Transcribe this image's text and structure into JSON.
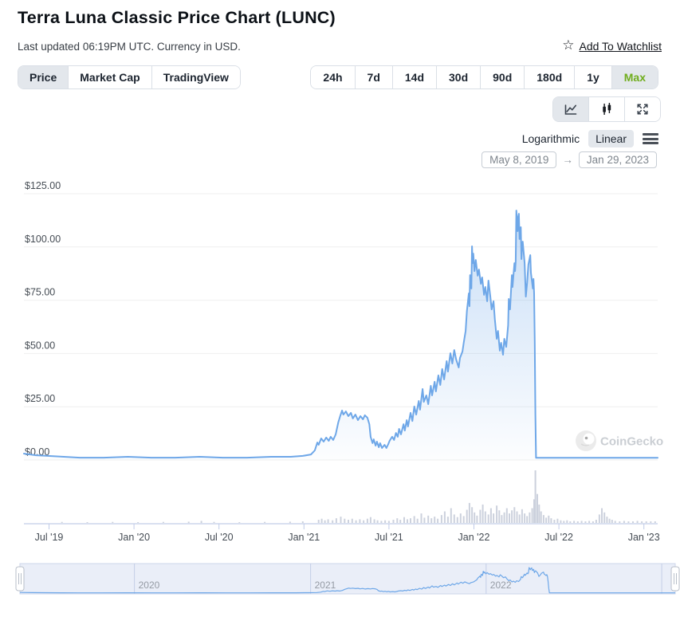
{
  "header": {
    "title": "Terra Luna Classic Price Chart (LUNC)",
    "subtitle": "Last updated 06:19PM UTC. Currency in USD.",
    "watchlist_label": "Add To Watchlist"
  },
  "tabs": [
    {
      "label": "Price",
      "active": true
    },
    {
      "label": "Market Cap",
      "active": false
    },
    {
      "label": "TradingView",
      "active": false
    }
  ],
  "ranges": [
    {
      "label": "24h",
      "active": false
    },
    {
      "label": "7d",
      "active": false
    },
    {
      "label": "14d",
      "active": false
    },
    {
      "label": "30d",
      "active": false
    },
    {
      "label": "90d",
      "active": false
    },
    {
      "label": "180d",
      "active": false
    },
    {
      "label": "1y",
      "active": false
    },
    {
      "label": "Max",
      "active": true
    }
  ],
  "chart_type_buttons": [
    {
      "icon": "line-chart-icon",
      "active": true
    },
    {
      "icon": "candlestick-icon",
      "active": false
    },
    {
      "icon": "fullscreen-icon",
      "active": false
    }
  ],
  "scale_toggle": {
    "log_label": "Logarithmic",
    "linear_label": "Linear",
    "active": "Linear"
  },
  "date_range": {
    "from": "May 8, 2019",
    "arrow": "→",
    "to": "Jan 29, 2023"
  },
  "watermark": "CoinGecko",
  "ui_colors": {
    "active_range_green": "#70ad1d",
    "active_segment_bg": "#e3e7ec"
  },
  "chart_data": {
    "type": "area",
    "currency": "USD",
    "y_ticks": [
      "$0.00",
      "$25.00",
      "$50.00",
      "$75.00",
      "$100.00",
      "$125.00"
    ],
    "y_tick_values": [
      0,
      25,
      50,
      75,
      100,
      125
    ],
    "ylim": [
      0,
      131
    ],
    "x_ticks": [
      "Jul '19",
      "Jan '20",
      "Jul '20",
      "Jan '21",
      "Jul '21",
      "Jan '22",
      "Jul '22",
      "Jan '23"
    ],
    "x_range": [
      "May 8, 2019",
      "Jan 29, 2023"
    ],
    "navigator_years": [
      "2020",
      "2021",
      "2022"
    ],
    "grid": true,
    "legend": false,
    "colors": {
      "line": "#6ea7e8",
      "fill_top": "rgba(110,167,232,0.38)",
      "fill_bottom": "rgba(110,167,232,0.02)",
      "volume": "#ccd1dd",
      "axis": "#b3c0e2",
      "tick": "#c0cbe8",
      "grid": "#efefef",
      "nav_bg": "rgba(125,148,210,0.16)",
      "nav_border": "#ccd5ea",
      "nav_divider": "#c4cee7",
      "nav_line": "#6ea7e8"
    },
    "price_series": [
      [
        0,
        3.0
      ],
      [
        0.019,
        2.2
      ],
      [
        0.038,
        1.9
      ],
      [
        0.063,
        1.5
      ],
      [
        0.088,
        1.1
      ],
      [
        0.126,
        1.1
      ],
      [
        0.164,
        1.5
      ],
      [
        0.201,
        1.1
      ],
      [
        0.239,
        1.1
      ],
      [
        0.277,
        1.5
      ],
      [
        0.314,
        1.1
      ],
      [
        0.352,
        1.1
      ],
      [
        0.39,
        1.5
      ],
      [
        0.421,
        1.5
      ],
      [
        0.44,
        1.9
      ],
      [
        0.453,
        2.6
      ],
      [
        0.459,
        4.5
      ],
      [
        0.463,
        8.2
      ],
      [
        0.465,
        7.1
      ],
      [
        0.469,
        10.1
      ],
      [
        0.473,
        8.6
      ],
      [
        0.477,
        10.5
      ],
      [
        0.481,
        9.0
      ],
      [
        0.484,
        10.9
      ],
      [
        0.488,
        9.4
      ],
      [
        0.492,
        12.0
      ],
      [
        0.496,
        17.6
      ],
      [
        0.499,
        20.6
      ],
      [
        0.502,
        23.2
      ],
      [
        0.504,
        21.3
      ],
      [
        0.508,
        22.8
      ],
      [
        0.512,
        20.6
      ],
      [
        0.516,
        22.1
      ],
      [
        0.519,
        19.5
      ],
      [
        0.523,
        21.3
      ],
      [
        0.527,
        18.7
      ],
      [
        0.531,
        20.6
      ],
      [
        0.535,
        19.1
      ],
      [
        0.538,
        21.0
      ],
      [
        0.542,
        19.8
      ],
      [
        0.545,
        16.8
      ],
      [
        0.547,
        10.9
      ],
      [
        0.55,
        7.9
      ],
      [
        0.552,
        9.7
      ],
      [
        0.555,
        6.7
      ],
      [
        0.557,
        8.6
      ],
      [
        0.56,
        6.0
      ],
      [
        0.562,
        7.9
      ],
      [
        0.565,
        5.6
      ],
      [
        0.569,
        7.1
      ],
      [
        0.572,
        5.6
      ],
      [
        0.575,
        7.5
      ],
      [
        0.577,
        9.0
      ],
      [
        0.581,
        10.9
      ],
      [
        0.584,
        9.4
      ],
      [
        0.587,
        12.7
      ],
      [
        0.59,
        10.9
      ],
      [
        0.592,
        14.6
      ],
      [
        0.595,
        12.0
      ],
      [
        0.599,
        16.8
      ],
      [
        0.601,
        13.8
      ],
      [
        0.604,
        18.7
      ],
      [
        0.606,
        15.7
      ],
      [
        0.61,
        22.1
      ],
      [
        0.613,
        18.3
      ],
      [
        0.616,
        25.1
      ],
      [
        0.619,
        21.3
      ],
      [
        0.623,
        27.7
      ],
      [
        0.625,
        23.6
      ],
      [
        0.629,
        33.3
      ],
      [
        0.631,
        27.3
      ],
      [
        0.635,
        30.3
      ],
      [
        0.638,
        26.2
      ],
      [
        0.642,
        34.8
      ],
      [
        0.644,
        30.3
      ],
      [
        0.648,
        36.7
      ],
      [
        0.65,
        32.2
      ],
      [
        0.654,
        39.7
      ],
      [
        0.657,
        35.2
      ],
      [
        0.66,
        42.7
      ],
      [
        0.663,
        37.8
      ],
      [
        0.667,
        46.4
      ],
      [
        0.669,
        41.5
      ],
      [
        0.673,
        50.1
      ],
      [
        0.676,
        45.3
      ],
      [
        0.679,
        51.6
      ],
      [
        0.682,
        47.2
      ],
      [
        0.686,
        43.4
      ],
      [
        0.688,
        47.9
      ],
      [
        0.692,
        50.9
      ],
      [
        0.694,
        55.0
      ],
      [
        0.697,
        60.6
      ],
      [
        0.699,
        70.0
      ],
      [
        0.702,
        78.2
      ],
      [
        0.703,
        72.2
      ],
      [
        0.704,
        86.8
      ],
      [
        0.706,
        80.5
      ],
      [
        0.707,
        100.3
      ],
      [
        0.708,
        92.4
      ],
      [
        0.709,
        96.9
      ],
      [
        0.711,
        88.7
      ],
      [
        0.713,
        93.9
      ],
      [
        0.716,
        86.5
      ],
      [
        0.718,
        89.4
      ],
      [
        0.721,
        82.7
      ],
      [
        0.723,
        85.7
      ],
      [
        0.726,
        77.5
      ],
      [
        0.728,
        81.2
      ],
      [
        0.731,
        74.5
      ],
      [
        0.733,
        84.2
      ],
      [
        0.736,
        76.7
      ],
      [
        0.738,
        70.7
      ],
      [
        0.741,
        74.5
      ],
      [
        0.743,
        66.2
      ],
      [
        0.746,
        56.9
      ],
      [
        0.748,
        60.6
      ],
      [
        0.751,
        51.3
      ],
      [
        0.753,
        55.0
      ],
      [
        0.756,
        49.4
      ],
      [
        0.758,
        56.9
      ],
      [
        0.761,
        53.1
      ],
      [
        0.764,
        63.2
      ],
      [
        0.765,
        75.6
      ],
      [
        0.767,
        70.7
      ],
      [
        0.77,
        86.8
      ],
      [
        0.771,
        81.2
      ],
      [
        0.774,
        92.4
      ],
      [
        0.775,
        88.7
      ],
      [
        0.776,
        93.2
      ],
      [
        0.777,
        117.1
      ],
      [
        0.779,
        107.4
      ],
      [
        0.78,
        114.1
      ],
      [
        0.781,
        115.6
      ],
      [
        0.782,
        103.7
      ],
      [
        0.784,
        109.3
      ],
      [
        0.785,
        94.3
      ],
      [
        0.786,
        99.9
      ],
      [
        0.787,
        102.5
      ],
      [
        0.79,
        92.4
      ],
      [
        0.792,
        76.7
      ],
      [
        0.794,
        83.1
      ],
      [
        0.796,
        91.7
      ],
      [
        0.799,
        96.2
      ],
      [
        0.8,
        87.9
      ],
      [
        0.803,
        80.5
      ],
      [
        0.804,
        85.0
      ],
      [
        0.805,
        78.2
      ],
      [
        0.806,
        55.0
      ],
      [
        0.807,
        21.3
      ],
      [
        0.808,
        1.0
      ],
      [
        0.85,
        1.0
      ],
      [
        0.9,
        1.0
      ],
      [
        0.95,
        1.0
      ],
      [
        1.0,
        1.0
      ]
    ],
    "volume_series": [
      [
        0.06,
        0.02
      ],
      [
        0.1,
        0.015
      ],
      [
        0.14,
        0.02
      ],
      [
        0.18,
        0.015
      ],
      [
        0.22,
        0.02
      ],
      [
        0.26,
        0.025
      ],
      [
        0.28,
        0.04
      ],
      [
        0.3,
        0.02
      ],
      [
        0.34,
        0.015
      ],
      [
        0.38,
        0.02
      ],
      [
        0.42,
        0.025
      ],
      [
        0.44,
        0.03
      ],
      [
        0.465,
        0.06
      ],
      [
        0.47,
        0.08
      ],
      [
        0.475,
        0.05
      ],
      [
        0.48,
        0.07
      ],
      [
        0.487,
        0.05
      ],
      [
        0.493,
        0.09
      ],
      [
        0.5,
        0.12
      ],
      [
        0.506,
        0.08
      ],
      [
        0.512,
        0.06
      ],
      [
        0.518,
        0.08
      ],
      [
        0.524,
        0.05
      ],
      [
        0.53,
        0.07
      ],
      [
        0.536,
        0.05
      ],
      [
        0.542,
        0.08
      ],
      [
        0.547,
        0.11
      ],
      [
        0.553,
        0.07
      ],
      [
        0.558,
        0.05
      ],
      [
        0.564,
        0.04
      ],
      [
        0.57,
        0.05
      ],
      [
        0.576,
        0.04
      ],
      [
        0.583,
        0.06
      ],
      [
        0.589,
        0.09
      ],
      [
        0.594,
        0.06
      ],
      [
        0.6,
        0.11
      ],
      [
        0.605,
        0.07
      ],
      [
        0.61,
        0.09
      ],
      [
        0.616,
        0.13
      ],
      [
        0.621,
        0.08
      ],
      [
        0.627,
        0.18
      ],
      [
        0.632,
        0.1
      ],
      [
        0.638,
        0.14
      ],
      [
        0.643,
        0.09
      ],
      [
        0.648,
        0.12
      ],
      [
        0.653,
        0.08
      ],
      [
        0.659,
        0.15
      ],
      [
        0.664,
        0.22
      ],
      [
        0.669,
        0.12
      ],
      [
        0.674,
        0.28
      ],
      [
        0.679,
        0.16
      ],
      [
        0.684,
        0.11
      ],
      [
        0.689,
        0.18
      ],
      [
        0.694,
        0.13
      ],
      [
        0.699,
        0.25
      ],
      [
        0.703,
        0.38
      ],
      [
        0.707,
        0.3
      ],
      [
        0.711,
        0.2
      ],
      [
        0.715,
        0.14
      ],
      [
        0.72,
        0.25
      ],
      [
        0.724,
        0.35
      ],
      [
        0.728,
        0.22
      ],
      [
        0.733,
        0.16
      ],
      [
        0.737,
        0.28
      ],
      [
        0.741,
        0.18
      ],
      [
        0.746,
        0.33
      ],
      [
        0.75,
        0.24
      ],
      [
        0.754,
        0.15
      ],
      [
        0.758,
        0.2
      ],
      [
        0.762,
        0.28
      ],
      [
        0.766,
        0.18
      ],
      [
        0.77,
        0.24
      ],
      [
        0.774,
        0.3
      ],
      [
        0.778,
        0.22
      ],
      [
        0.782,
        0.16
      ],
      [
        0.786,
        0.26
      ],
      [
        0.79,
        0.18
      ],
      [
        0.794,
        0.13
      ],
      [
        0.798,
        0.2
      ],
      [
        0.802,
        0.28
      ],
      [
        0.805,
        0.45
      ],
      [
        0.807,
        1.0
      ],
      [
        0.81,
        0.55
      ],
      [
        0.813,
        0.35
      ],
      [
        0.816,
        0.22
      ],
      [
        0.82,
        0.15
      ],
      [
        0.824,
        0.1
      ],
      [
        0.828,
        0.14
      ],
      [
        0.832,
        0.09
      ],
      [
        0.837,
        0.06
      ],
      [
        0.842,
        0.08
      ],
      [
        0.847,
        0.05
      ],
      [
        0.852,
        0.04
      ],
      [
        0.857,
        0.05
      ],
      [
        0.862,
        0.03
      ],
      [
        0.868,
        0.04
      ],
      [
        0.874,
        0.03
      ],
      [
        0.88,
        0.04
      ],
      [
        0.886,
        0.03
      ],
      [
        0.892,
        0.04
      ],
      [
        0.898,
        0.03
      ],
      [
        0.903,
        0.06
      ],
      [
        0.908,
        0.16
      ],
      [
        0.912,
        0.28
      ],
      [
        0.916,
        0.2
      ],
      [
        0.92,
        0.12
      ],
      [
        0.924,
        0.08
      ],
      [
        0.928,
        0.06
      ],
      [
        0.933,
        0.04
      ],
      [
        0.94,
        0.03
      ],
      [
        0.947,
        0.04
      ],
      [
        0.954,
        0.03
      ],
      [
        0.961,
        0.03
      ],
      [
        0.968,
        0.04
      ],
      [
        0.975,
        0.03
      ],
      [
        0.982,
        0.03
      ],
      [
        0.989,
        0.03
      ],
      [
        0.996,
        0.03
      ]
    ]
  }
}
